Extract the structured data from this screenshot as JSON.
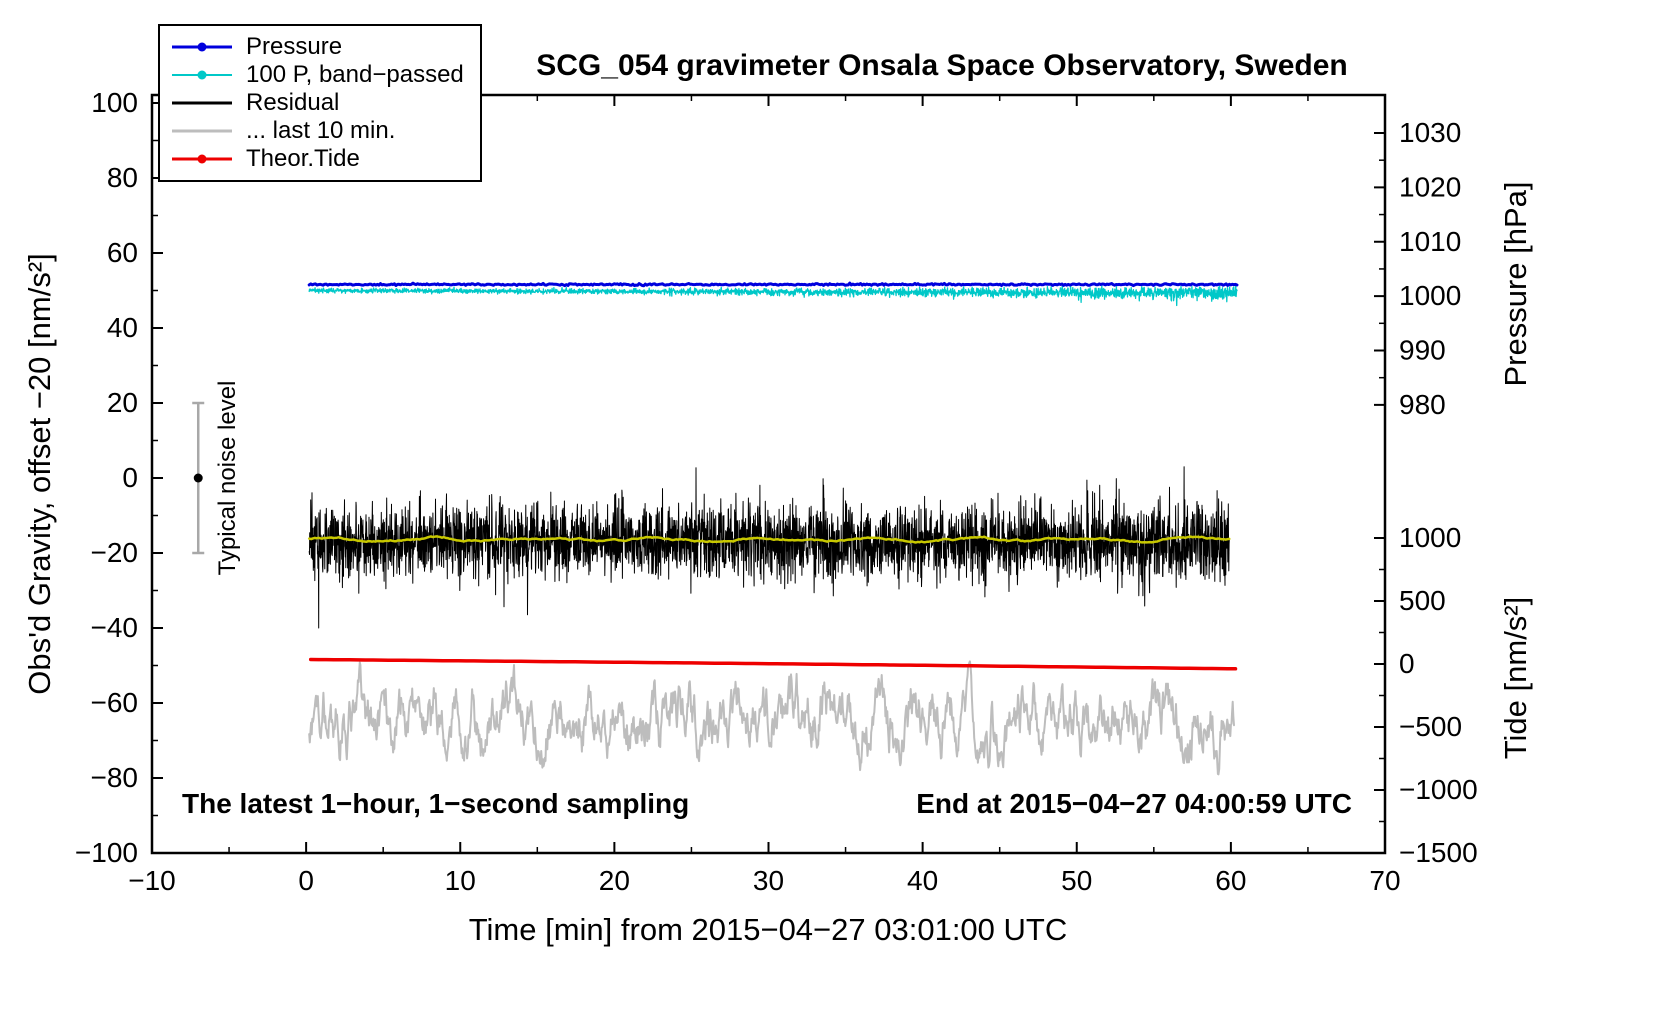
{
  "chart_data": {
    "type": "line",
    "title": "SCG_054 gravimeter Onsala Space Observatory, Sweden",
    "x_axis": {
      "label": "Time [min] from 2015−04−27 03:01:00 UTC",
      "range": [
        -10,
        70
      ],
      "major_ticks": [
        -10,
        0,
        10,
        20,
        30,
        40,
        50,
        60,
        70
      ],
      "minor_tick_step": 5
    },
    "y_axis_left": {
      "label": "Obs'd Gravity, offset −20 [nm/s²]",
      "range": [
        -100,
        100
      ],
      "major_ticks": [
        -100,
        -80,
        -60,
        -40,
        -20,
        0,
        20,
        40,
        60,
        80,
        100
      ],
      "minor_tick_step": 10
    },
    "y_axis_right_pressure": {
      "label": "Pressure [hPa]",
      "ticks": [
        1030,
        1020,
        1010,
        1000,
        990,
        980
      ],
      "minor_tick_step": 5,
      "ref_value": 1030,
      "ref_gravity_units": 92,
      "gravity_units_per_hPa": 1.45
    },
    "y_axis_right_tide": {
      "label": "Tide [nm/s²]",
      "ticks": [
        1000,
        500,
        0,
        -500,
        -1000,
        -1500
      ],
      "minor_tick_step": 250,
      "ref_value": 0,
      "ref_gravity_units": -49.6,
      "gravity_units_per_unit": 0.0336
    },
    "legend": [
      {
        "label": "Pressure",
        "color": "#0000dd",
        "marker": true,
        "line_width": 3
      },
      {
        "label": "100 P, band−passed",
        "color": "#00c8c8",
        "marker": true,
        "line_width": 2
      },
      {
        "label": "Residual",
        "color": "#000000",
        "marker": false,
        "line_width": 3
      },
      {
        "label": "... last 10 min.",
        "color": "#bdbdbd",
        "marker": false,
        "line_width": 3
      },
      {
        "label": "Theor.Tide",
        "color": "#ee0000",
        "marker": true,
        "line_width": 3
      }
    ],
    "series": [
      {
        "name": "residual-last-10min",
        "color": "#bdbdbd",
        "width": 2,
        "x_start": 0.2,
        "x_end": 60.2,
        "mean": -64,
        "std": 5.5,
        "min": -79,
        "max": -48,
        "samples": 1500,
        "character": "band-passed"
      },
      {
        "name": "theoretical-tide",
        "color": "#ee0000",
        "width": 3.5,
        "x_start": 0.3,
        "x_end": 60.3,
        "start_value": -48.4,
        "end_value": -50.9,
        "samples": 120,
        "character": "smooth"
      },
      {
        "name": "residual",
        "color": "#000000",
        "width": 1,
        "x_start": 0.2,
        "x_end": 59.9,
        "mean": -17,
        "std": 5,
        "min": -40,
        "max": 3,
        "samples": 3600,
        "character": "white-noise"
      },
      {
        "name": "residual-smoothed",
        "color": "#c8c800",
        "width": 2.5,
        "x_start": 0.2,
        "x_end": 59.9,
        "mean": -16.4,
        "std": 0.6,
        "samples": 500,
        "character": "smoothed"
      },
      {
        "name": "pressure-band-passed",
        "color": "#00c8c8",
        "width": 1.3,
        "x_start": 0.2,
        "x_end": 60.4,
        "mean": 49.7,
        "std_start": 0.3,
        "std_end": 0.9,
        "min": 46,
        "max": 52,
        "spikes_after_x": 53,
        "samples": 3000,
        "character": "noise-growing"
      },
      {
        "name": "pressure",
        "color": "#0000dd",
        "width": 3,
        "x_start": 0.2,
        "x_end": 60.4,
        "mean": 51.6,
        "std": 0.12,
        "samples": 600,
        "character": "flat"
      }
    ],
    "noise_marker": {
      "label": "Typical noise level",
      "x": -7,
      "center": 0,
      "half_range": 20
    },
    "annotations": {
      "bottom_left": "The latest 1−hour, 1−second sampling",
      "bottom_right": "End at 2015−04−27 04:00:59 UTC"
    }
  }
}
